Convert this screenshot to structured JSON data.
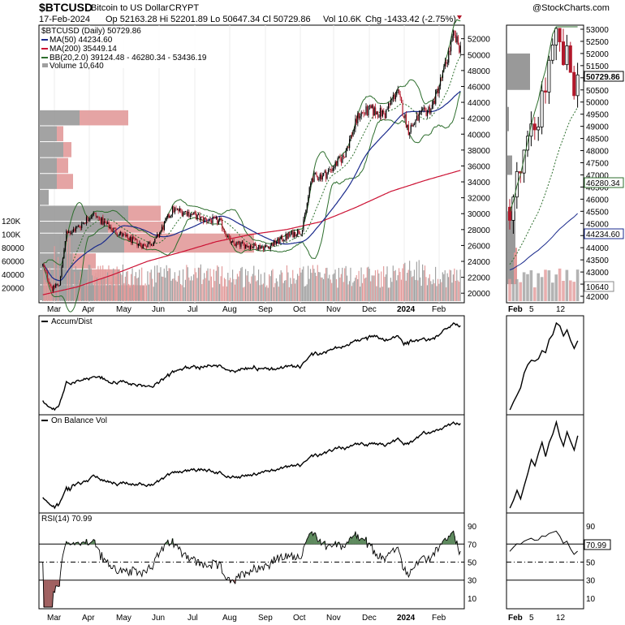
{
  "header": {
    "symbol": "$BTCUSD",
    "description": "Bitcoin to US Dollar",
    "exchange": "CRYPT",
    "watermark": "@StockCharts.com",
    "date": "17-Feb-2024",
    "ohlc": "Op 52163.28  Hi 52201.89  Lo 50647.34  Cl 50729.86",
    "volume": "Vol 10.6K",
    "change": "Chg -1433.42 (-2.75%)"
  },
  "legend": {
    "title": "$BTCUSD (Daily) 50729.86",
    "ma50": "MA(50) 44234.60",
    "ma200": "MA(200) 35449.14",
    "bb": "BB(20,2.0) 39124.48 - 46280.34 - 53436.19",
    "volume": "Volume 10,640"
  },
  "colors": {
    "up": "#000000",
    "down": "#b2182b",
    "ma50": "#1a2a8c",
    "ma200": "#cc1133",
    "bb": "#2d6e2d",
    "vol_up": "#a0a0a0",
    "vol_down": "#e29a9a",
    "vbp_up": "#999999",
    "vbp_down": "#e29a9a",
    "rsi_fill_high": "#5e8a5e",
    "rsi_fill_low": "#a06060"
  },
  "price_axis": {
    "labels": [
      "52000",
      "50000",
      "48000",
      "46000",
      "44000",
      "42000",
      "40000",
      "38000",
      "36000",
      "34000",
      "32000",
      "30000",
      "28000",
      "26000",
      "24000",
      "22000",
      "20000"
    ]
  },
  "volume_axis": {
    "labels": [
      "120K",
      "100K",
      "80000",
      "60000",
      "40000",
      "20000"
    ]
  },
  "x_axis_main": {
    "labels": [
      "Mar",
      "Apr",
      "May",
      "Jun",
      "Jul",
      "Aug",
      "Sep",
      "Oct",
      "Nov",
      "Dec",
      "2024",
      "Feb"
    ]
  },
  "x_axis_zoom": {
    "labels": [
      "Feb",
      "5",
      "12"
    ]
  },
  "zoom_axis": {
    "labels": [
      "53000",
      "52500",
      "52000",
      "51500",
      "51000",
      "50500",
      "50000",
      "49500",
      "49000",
      "48500",
      "48000",
      "47500",
      "47000",
      "46500",
      "46000",
      "45500",
      "45000",
      "44500",
      "44000",
      "43500",
      "43000",
      "42500",
      "42000"
    ],
    "tags": {
      "last": "50729.86",
      "bb_mid": "46280.34",
      "ma50": "44234.60",
      "volume": "10640"
    }
  },
  "panels": {
    "accum": {
      "label": "Accum/Dist"
    },
    "obv": {
      "label": "On Balance Vol"
    },
    "rsi": {
      "label": "RSI(14) 70.99",
      "tag": "70.99",
      "axis_labels": [
        "90",
        "70",
        "50",
        "30",
        "10"
      ]
    }
  },
  "chart_data": {
    "type": "line",
    "title": "$BTCUSD Bitcoin to US Dollar CRYPT",
    "series": [
      {
        "name": "$BTCUSD",
        "x": [
          "Mar",
          "Apr",
          "May",
          "Jun",
          "Jul",
          "Aug",
          "Sep",
          "Oct",
          "Nov",
          "Dec",
          "2024",
          "Feb",
          "17-Feb-2024"
        ],
        "values": [
          22000,
          28000,
          29000,
          27000,
          30500,
          29500,
          26000,
          27000,
          35000,
          42000,
          44000,
          43000,
          50729.86
        ]
      },
      {
        "name": "MA(50) 44234.60",
        "x": [
          "Mar",
          "Apr",
          "May",
          "Jun",
          "Jul",
          "Aug",
          "Sep",
          "Oct",
          "Nov",
          "Dec",
          "2024",
          "Feb",
          "17-Feb-2024"
        ],
        "values": [
          23000,
          24000,
          28000,
          27800,
          28000,
          29500,
          28000,
          26500,
          30000,
          37000,
          42000,
          43000,
          44234.6
        ]
      },
      {
        "name": "MA(200) 35449.14",
        "x": [
          "Mar",
          "Apr",
          "May",
          "Jun",
          "Jul",
          "Aug",
          "Sep",
          "Oct",
          "Nov",
          "Dec",
          "2024",
          "Feb",
          "17-Feb-2024"
        ],
        "values": [
          19800,
          20800,
          22300,
          24000,
          25200,
          26500,
          27400,
          28000,
          29000,
          30800,
          32800,
          34200,
          35449.14
        ]
      }
    ],
    "ylim": [
      19000,
      53500
    ],
    "grid": true,
    "legend_position": "top-left"
  }
}
